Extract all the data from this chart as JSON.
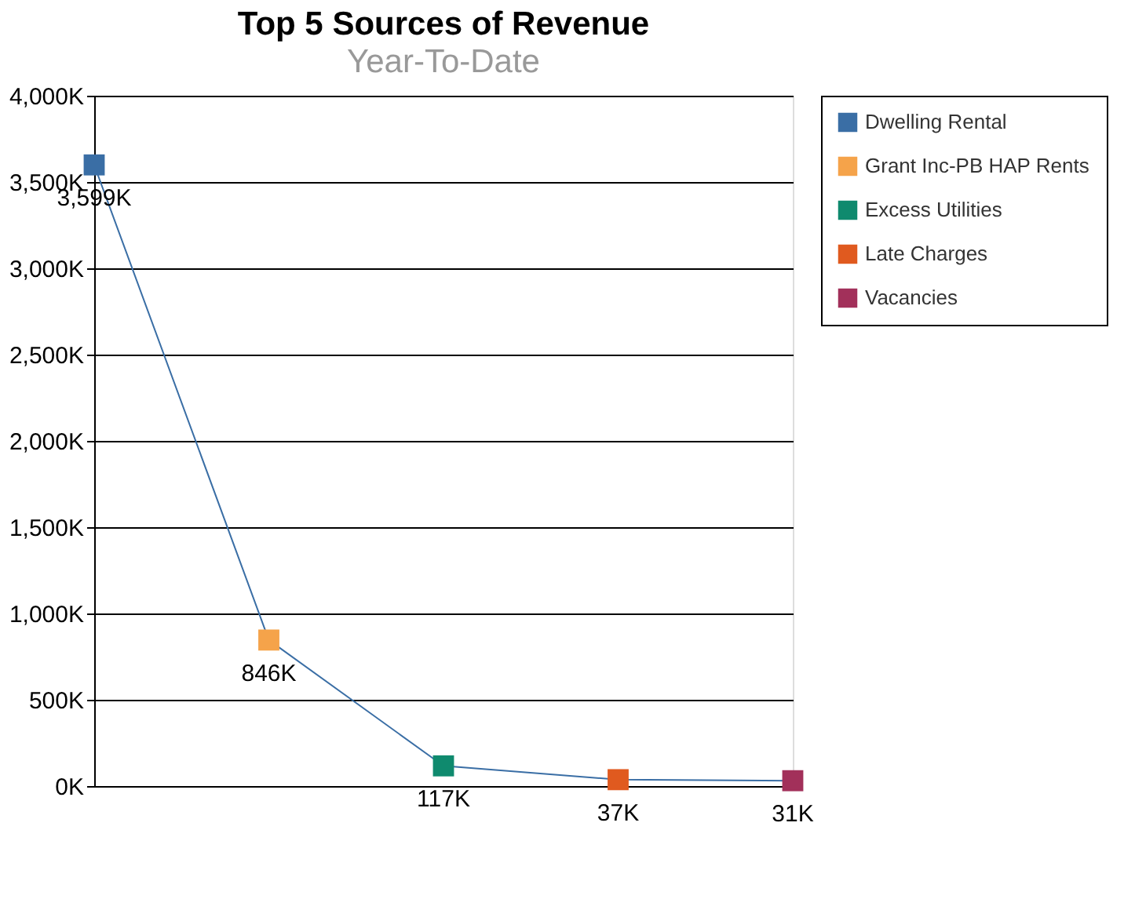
{
  "chart_data": {
    "type": "line",
    "title": "Top 5 Sources of Revenue",
    "subtitle": "Year-To-Date",
    "categories": [
      null,
      null,
      null,
      null,
      null
    ],
    "series": [
      {
        "marker": "none",
        "color": "#3a6ea5",
        "values": [
          3599,
          846,
          117,
          37,
          31
        ],
        "value_labels": [
          "3,599K",
          "846K",
          "117K",
          "37K",
          "31K"
        ]
      },
      {
        "type": "scatter",
        "name": "Dwelling Rental",
        "color": "#3a6ea5",
        "values": [
          3599,
          null,
          null,
          null,
          null
        ]
      },
      {
        "type": "scatter",
        "name": "Grant Inc-PB HAP Rents",
        "color": "#f5a34a",
        "values": [
          null,
          846,
          null,
          null,
          null
        ]
      },
      {
        "type": "scatter",
        "name": "Excess Utilities",
        "color": "#0f8a6e",
        "values": [
          null,
          null,
          117,
          null,
          null
        ]
      },
      {
        "type": "scatter",
        "name": "Late Charges",
        "color": "#e05a1f",
        "values": [
          null,
          null,
          null,
          37,
          null
        ]
      },
      {
        "type": "scatter",
        "name": "Vacancies",
        "color": "#a2305a",
        "values": [
          null,
          null,
          null,
          null,
          31
        ]
      }
    ],
    "ylim": [
      0,
      4000
    ],
    "yticks": [
      {
        "value": 0,
        "label": "0K"
      },
      {
        "value": 500,
        "label": "500K"
      },
      {
        "value": 1000,
        "label": "1,000K"
      },
      {
        "value": 1500,
        "label": "1,500K"
      },
      {
        "value": 2000,
        "label": "2,000K"
      },
      {
        "value": 2500,
        "label": "2,500K"
      },
      {
        "value": 3000,
        "label": "3,000K"
      },
      {
        "value": 3500,
        "label": "3,500K"
      },
      {
        "value": 4000,
        "label": "4,000K"
      }
    ],
    "grid": "y",
    "legend": "right",
    "tick_labels": "y",
    "marker": "square",
    "line_style": "solid"
  }
}
